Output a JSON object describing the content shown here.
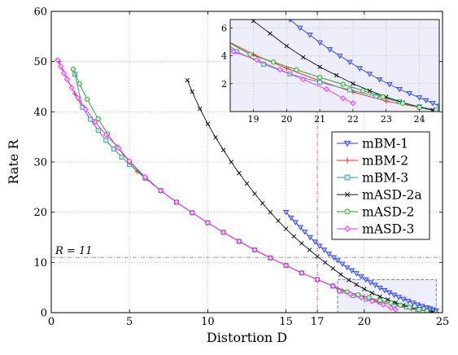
{
  "chart_data": {
    "type": "line",
    "xlabel": "Distortion D",
    "ylabel": "Rate R",
    "xlim": [
      0,
      25
    ],
    "ylim": [
      0,
      60
    ],
    "xticks": [
      "0",
      "5",
      "10",
      "15",
      "17",
      "20",
      "25"
    ],
    "yticks": [
      "0",
      "10",
      "20",
      "30",
      "40",
      "50",
      "60"
    ],
    "grid": true,
    "legend_position": "center-right",
    "annotations": {
      "hline": {
        "y": 11,
        "label": "R = 11"
      },
      "vline": {
        "x": 17
      },
      "zoom_box": {
        "x": [
          18.3,
          24.6
        ],
        "y": [
          0,
          6.6
        ]
      }
    },
    "inset": {
      "xlim": [
        18.3,
        24.6
      ],
      "ylim": [
        0,
        6.6
      ],
      "xticks": [
        "19",
        "20",
        "21",
        "22",
        "23",
        "24"
      ],
      "yticks": [
        "2",
        "4",
        "6"
      ]
    },
    "series": [
      {
        "name": "mBM-1",
        "color": "#1f3dff",
        "marker": "triangle-down",
        "points": [
          [
            15.0,
            20.0
          ],
          [
            15.32,
            18.9
          ],
          [
            15.6,
            18.0
          ],
          [
            15.92,
            17.0
          ],
          [
            16.2,
            16.1
          ],
          [
            16.54,
            15.0
          ],
          [
            16.86,
            14.1
          ],
          [
            17.14,
            13.3
          ],
          [
            17.44,
            12.5
          ],
          [
            17.74,
            11.7
          ],
          [
            18.05,
            11.0
          ],
          [
            18.3,
            10.4
          ],
          [
            18.6,
            9.7
          ],
          [
            18.9,
            9.0
          ],
          [
            19.2,
            8.4
          ],
          [
            19.5,
            7.8
          ],
          [
            19.79,
            7.2
          ],
          [
            20.1,
            6.6
          ],
          [
            20.4,
            6.0
          ],
          [
            20.7,
            5.5
          ],
          [
            21.0,
            4.95
          ],
          [
            21.3,
            4.45
          ],
          [
            21.6,
            4.0
          ],
          [
            21.9,
            3.55
          ],
          [
            22.2,
            3.1
          ],
          [
            22.5,
            2.7
          ],
          [
            22.8,
            2.3
          ],
          [
            23.1,
            1.95
          ],
          [
            23.4,
            1.6
          ],
          [
            23.7,
            1.3
          ],
          [
            24.0,
            1.0
          ],
          [
            24.2,
            0.8
          ],
          [
            24.4,
            0.6
          ],
          [
            24.6,
            0.4
          ]
        ]
      },
      {
        "name": "mBM-2",
        "color": "#ff2222",
        "marker": "plus",
        "points": [
          [
            0.5,
            50.0
          ],
          [
            1.0,
            46.6
          ],
          [
            1.5,
            43.6
          ],
          [
            2.0,
            40.9
          ],
          [
            2.5,
            38.5
          ],
          [
            3.0,
            36.3
          ],
          [
            3.5,
            34.3
          ],
          [
            4.0,
            32.6
          ],
          [
            4.5,
            31.0
          ],
          [
            5.0,
            29.5
          ],
          [
            5.5,
            28.1
          ],
          [
            6.0,
            26.8
          ],
          [
            7.0,
            24.3
          ],
          [
            8.0,
            22.0
          ],
          [
            9.0,
            19.9
          ],
          [
            10.0,
            17.9
          ],
          [
            11.0,
            16.0
          ],
          [
            12.0,
            14.2
          ],
          [
            13.0,
            12.5
          ],
          [
            14.0,
            10.9
          ],
          [
            15.0,
            9.4
          ],
          [
            16.0,
            7.9
          ],
          [
            17.0,
            6.6
          ],
          [
            18.0,
            5.3
          ],
          [
            19.0,
            4.1
          ],
          [
            20.0,
            3.1
          ],
          [
            21.0,
            2.2
          ],
          [
            22.0,
            1.4
          ],
          [
            23.0,
            0.75
          ],
          [
            24.0,
            0.3
          ],
          [
            24.6,
            0.1
          ]
        ]
      },
      {
        "name": "mBM-3",
        "color": "#2a9a96",
        "marker": "square",
        "points": [
          [
            1.5,
            47.5
          ],
          [
            2.0,
            40.9
          ],
          [
            2.5,
            38.5
          ],
          [
            3.0,
            36.3
          ],
          [
            3.5,
            34.3
          ],
          [
            4.0,
            32.6
          ],
          [
            4.5,
            31.0
          ],
          [
            5.0,
            29.5
          ],
          [
            6.0,
            26.8
          ],
          [
            7.0,
            24.3
          ],
          [
            8.0,
            22.0
          ],
          [
            9.0,
            19.9
          ],
          [
            10.0,
            17.9
          ],
          [
            11.0,
            16.0
          ],
          [
            12.0,
            14.2
          ],
          [
            13.0,
            12.5
          ],
          [
            14.0,
            10.9
          ],
          [
            15.0,
            9.4
          ],
          [
            16.0,
            7.9
          ],
          [
            17.0,
            6.6
          ],
          [
            18.0,
            5.3
          ],
          [
            18.5,
            4.3
          ],
          [
            19.3,
            3.4
          ],
          [
            20.1,
            2.7
          ],
          [
            21.0,
            2.1
          ],
          [
            21.9,
            1.55
          ],
          [
            22.7,
            1.1
          ],
          [
            23.4,
            0.7
          ],
          [
            24.0,
            0.35
          ],
          [
            24.5,
            0.12
          ]
        ]
      },
      {
        "name": "mASD-2a",
        "color": "#111111",
        "marker": "x",
        "points": [
          [
            8.7,
            46.3
          ],
          [
            9.0,
            44.0
          ],
          [
            9.5,
            40.6
          ],
          [
            10.0,
            37.6
          ],
          [
            10.5,
            34.9
          ],
          [
            11.0,
            32.4
          ],
          [
            11.5,
            30.0
          ],
          [
            12.0,
            27.8
          ],
          [
            12.5,
            25.7
          ],
          [
            13.0,
            23.7
          ],
          [
            13.5,
            21.8
          ],
          [
            14.0,
            20.0
          ],
          [
            14.5,
            18.3
          ],
          [
            15.0,
            16.7
          ],
          [
            15.5,
            15.2
          ],
          [
            16.0,
            13.8
          ],
          [
            16.5,
            12.5
          ],
          [
            17.0,
            11.2
          ],
          [
            17.5,
            10.0
          ],
          [
            18.0,
            8.8
          ],
          [
            18.5,
            7.6
          ],
          [
            19.0,
            6.5
          ],
          [
            19.5,
            5.6
          ],
          [
            20.0,
            4.7
          ],
          [
            20.5,
            3.9
          ],
          [
            21.0,
            3.2
          ],
          [
            21.5,
            2.6
          ],
          [
            22.0,
            2.0
          ],
          [
            22.5,
            1.5
          ],
          [
            23.0,
            1.05
          ],
          [
            23.5,
            0.65
          ],
          [
            24.0,
            0.3
          ],
          [
            24.4,
            0.1
          ]
        ]
      },
      {
        "name": "mASD-2",
        "color": "#1e9e1e",
        "marker": "circle",
        "points": [
          [
            1.4,
            48.5
          ],
          [
            1.8,
            45.6
          ],
          [
            2.3,
            42.5
          ],
          [
            3.0,
            38.6
          ],
          [
            3.6,
            35.6
          ],
          [
            4.2,
            33.0
          ],
          [
            5.0,
            30.0
          ],
          [
            6.0,
            26.8
          ],
          [
            7.0,
            24.3
          ],
          [
            8.0,
            22.0
          ],
          [
            9.0,
            19.9
          ],
          [
            10.0,
            17.9
          ],
          [
            11.0,
            16.0
          ],
          [
            12.0,
            14.2
          ],
          [
            13.0,
            12.5
          ],
          [
            14.0,
            10.9
          ],
          [
            15.0,
            9.4
          ],
          [
            16.0,
            7.9
          ],
          [
            17.0,
            6.6
          ],
          [
            18.0,
            5.3
          ],
          [
            18.9,
            4.1
          ],
          [
            19.6,
            3.55
          ],
          [
            20.3,
            3.0
          ],
          [
            21.0,
            2.45
          ],
          [
            21.7,
            1.95
          ],
          [
            22.3,
            1.5
          ],
          [
            22.9,
            1.05
          ],
          [
            23.5,
            0.6
          ],
          [
            24.0,
            0.3
          ]
        ]
      },
      {
        "name": "mASD-3",
        "color": "#ff22ff",
        "marker": "diamond",
        "points": [
          [
            0.4,
            50.3
          ],
          [
            0.6,
            49.0
          ],
          [
            0.8,
            47.7
          ],
          [
            1.0,
            46.5
          ],
          [
            1.3,
            44.8
          ],
          [
            1.7,
            42.8
          ],
          [
            2.2,
            40.5
          ],
          [
            2.8,
            38.0
          ],
          [
            3.5,
            35.4
          ],
          [
            4.3,
            32.8
          ],
          [
            5.0,
            30.2
          ],
          [
            6.0,
            27.0
          ],
          [
            7.0,
            24.3
          ],
          [
            8.0,
            22.0
          ],
          [
            9.0,
            19.9
          ],
          [
            10.0,
            17.9
          ],
          [
            11.0,
            16.0
          ],
          [
            12.0,
            14.2
          ],
          [
            13.0,
            12.5
          ],
          [
            14.0,
            10.9
          ],
          [
            15.0,
            9.4
          ],
          [
            16.0,
            7.9
          ],
          [
            17.0,
            6.6
          ],
          [
            18.0,
            5.3
          ],
          [
            18.4,
            4.3
          ],
          [
            19.1,
            3.7
          ],
          [
            19.8,
            3.0
          ],
          [
            20.5,
            2.3
          ],
          [
            21.2,
            1.6
          ],
          [
            21.7,
            0.95
          ],
          [
            22.0,
            0.6
          ]
        ]
      }
    ]
  }
}
